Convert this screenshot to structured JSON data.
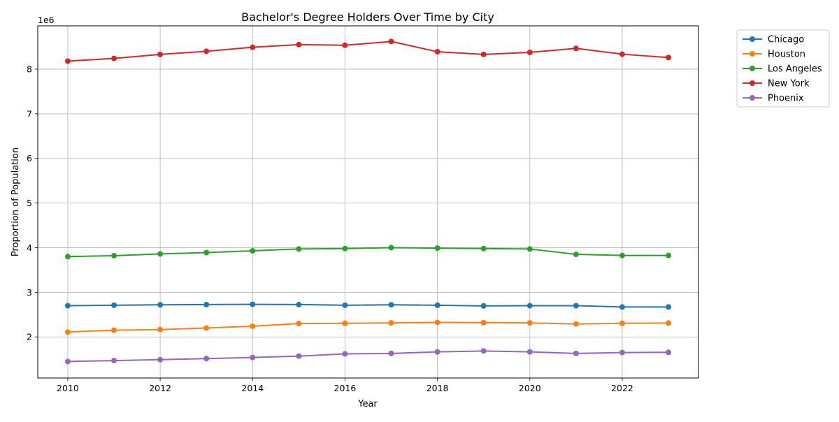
{
  "chart_data": {
    "type": "line",
    "title": "Bachelor's Degree Holders Over Time by City",
    "xlabel": "Year",
    "ylabel": "Proportion of Population",
    "offset_text": "1e6",
    "x": [
      2010,
      2011,
      2012,
      2013,
      2014,
      2015,
      2016,
      2017,
      2018,
      2019,
      2020,
      2021,
      2022,
      2023
    ],
    "xlim": [
      2009.35,
      2023.65
    ],
    "ylim": [
      1.08,
      8.97
    ],
    "x_ticks": [
      2010,
      2012,
      2014,
      2016,
      2018,
      2020,
      2022
    ],
    "y_ticks": [
      2,
      3,
      4,
      5,
      6,
      7,
      8
    ],
    "grid": true,
    "legend_position": "outside-top-right",
    "series": [
      {
        "name": "Chicago",
        "color": "#1f77b4",
        "values": [
          2.7,
          2.71,
          2.72,
          2.725,
          2.73,
          2.725,
          2.71,
          2.72,
          2.71,
          2.695,
          2.7,
          2.7,
          2.67,
          2.67
        ]
      },
      {
        "name": "Houston",
        "color": "#ff7f0e",
        "values": [
          2.11,
          2.15,
          2.165,
          2.2,
          2.24,
          2.3,
          2.305,
          2.315,
          2.325,
          2.32,
          2.315,
          2.29,
          2.305,
          2.31
        ]
      },
      {
        "name": "Los Angeles",
        "color": "#2ca02c",
        "values": [
          3.8,
          3.82,
          3.86,
          3.89,
          3.93,
          3.97,
          3.98,
          4.0,
          3.99,
          3.98,
          3.97,
          3.85,
          3.825,
          3.825
        ]
      },
      {
        "name": "New York",
        "color": "#d62728",
        "values": [
          8.18,
          8.24,
          8.33,
          8.4,
          8.49,
          8.55,
          8.535,
          8.62,
          8.39,
          8.33,
          8.375,
          8.465,
          8.335,
          8.26
        ]
      },
      {
        "name": "Phoenix",
        "color": "#9467bd",
        "values": [
          1.45,
          1.47,
          1.49,
          1.515,
          1.54,
          1.57,
          1.62,
          1.63,
          1.665,
          1.685,
          1.665,
          1.63,
          1.65,
          1.655
        ]
      }
    ]
  }
}
